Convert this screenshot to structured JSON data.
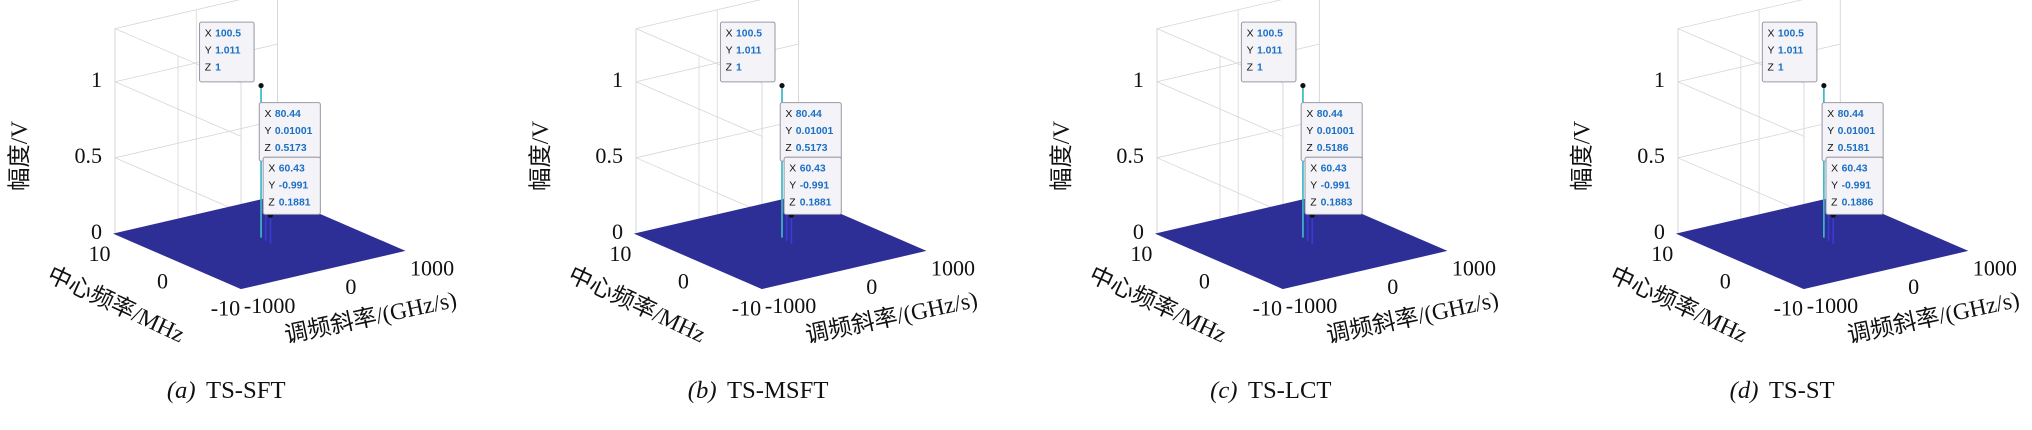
{
  "chart_data": [
    {
      "type": "surface",
      "tag": "(a)",
      "title": "TS-SFT",
      "xlabel": "调频斜率/(GHz/s)",
      "ylabel": "中心频率/MHz",
      "zlabel": "幅度/V",
      "xlim": [
        -1000,
        1000
      ],
      "ylim": [
        -10,
        10
      ],
      "zlim": [
        0,
        1.35
      ],
      "xticks": [
        -1000,
        0,
        1000
      ],
      "yticks": [
        -10,
        0,
        10
      ],
      "zticks": [
        0,
        0.5,
        1
      ],
      "color": "#2e2f96",
      "peak_color": "#3bb8c8",
      "grid": true,
      "tip_fields": [
        "X",
        "Y",
        "Z"
      ],
      "datatips": [
        {
          "x": 100.5,
          "y": 1.011,
          "z": 1
        },
        {
          "x": 80.44,
          "y": 0.01001,
          "z": 0.5173
        },
        {
          "x": 60.43,
          "y": -0.991,
          "z": 0.1881
        }
      ]
    },
    {
      "type": "surface",
      "tag": "(b)",
      "title": "TS-MSFT",
      "xlabel": "调频斜率/(GHz/s)",
      "ylabel": "中心频率/MHz",
      "zlabel": "幅度/V",
      "xlim": [
        -1000,
        1000
      ],
      "ylim": [
        -10,
        10
      ],
      "zlim": [
        0,
        1.35
      ],
      "xticks": [
        -1000,
        0,
        1000
      ],
      "yticks": [
        -10,
        0,
        10
      ],
      "zticks": [
        0,
        0.5,
        1
      ],
      "color": "#2e2f96",
      "peak_color": "#3bb8c8",
      "grid": true,
      "tip_fields": [
        "X",
        "Y",
        "Z"
      ],
      "datatips": [
        {
          "x": 100.5,
          "y": 1.011,
          "z": 1
        },
        {
          "x": 80.44,
          "y": 0.01001,
          "z": 0.5173
        },
        {
          "x": 60.43,
          "y": -0.991,
          "z": 0.1881
        }
      ]
    },
    {
      "type": "surface",
      "tag": "(c)",
      "title": "TS-LCT",
      "xlabel": "调频斜率/(GHz/s)",
      "ylabel": "中心频率/MHz",
      "zlabel": "幅度/V",
      "xlim": [
        -1000,
        1000
      ],
      "ylim": [
        -10,
        10
      ],
      "zlim": [
        0,
        1.35
      ],
      "xticks": [
        -1000,
        0,
        1000
      ],
      "yticks": [
        -10,
        0,
        10
      ],
      "zticks": [
        0,
        0.5,
        1
      ],
      "color": "#2e2f96",
      "peak_color": "#3bb8c8",
      "grid": true,
      "tip_fields": [
        "X",
        "Y",
        "Z"
      ],
      "datatips": [
        {
          "x": 100.5,
          "y": 1.011,
          "z": 1
        },
        {
          "x": 80.44,
          "y": 0.01001,
          "z": 0.5186
        },
        {
          "x": 60.43,
          "y": -0.991,
          "z": 0.1883
        }
      ]
    },
    {
      "type": "surface",
      "tag": "(d)",
      "title": "TS-ST",
      "xlabel": "调频斜率/(GHz/s)",
      "ylabel": "中心频率/MHz",
      "zlabel": "幅度/V",
      "xlim": [
        -1000,
        1000
      ],
      "ylim": [
        -10,
        10
      ],
      "zlim": [
        0,
        1.35
      ],
      "xticks": [
        -1000,
        0,
        1000
      ],
      "yticks": [
        -10,
        0,
        10
      ],
      "zticks": [
        0,
        0.5,
        1
      ],
      "color": "#2e2f96",
      "peak_color": "#3bb8c8",
      "grid": true,
      "tip_fields": [
        "X",
        "Y",
        "Z"
      ],
      "datatips": [
        {
          "x": 100.5,
          "y": 1.011,
          "z": 1
        },
        {
          "x": 80.44,
          "y": 0.01001,
          "z": 0.5181
        },
        {
          "x": 60.43,
          "y": -0.991,
          "z": 0.1886
        }
      ]
    }
  ]
}
